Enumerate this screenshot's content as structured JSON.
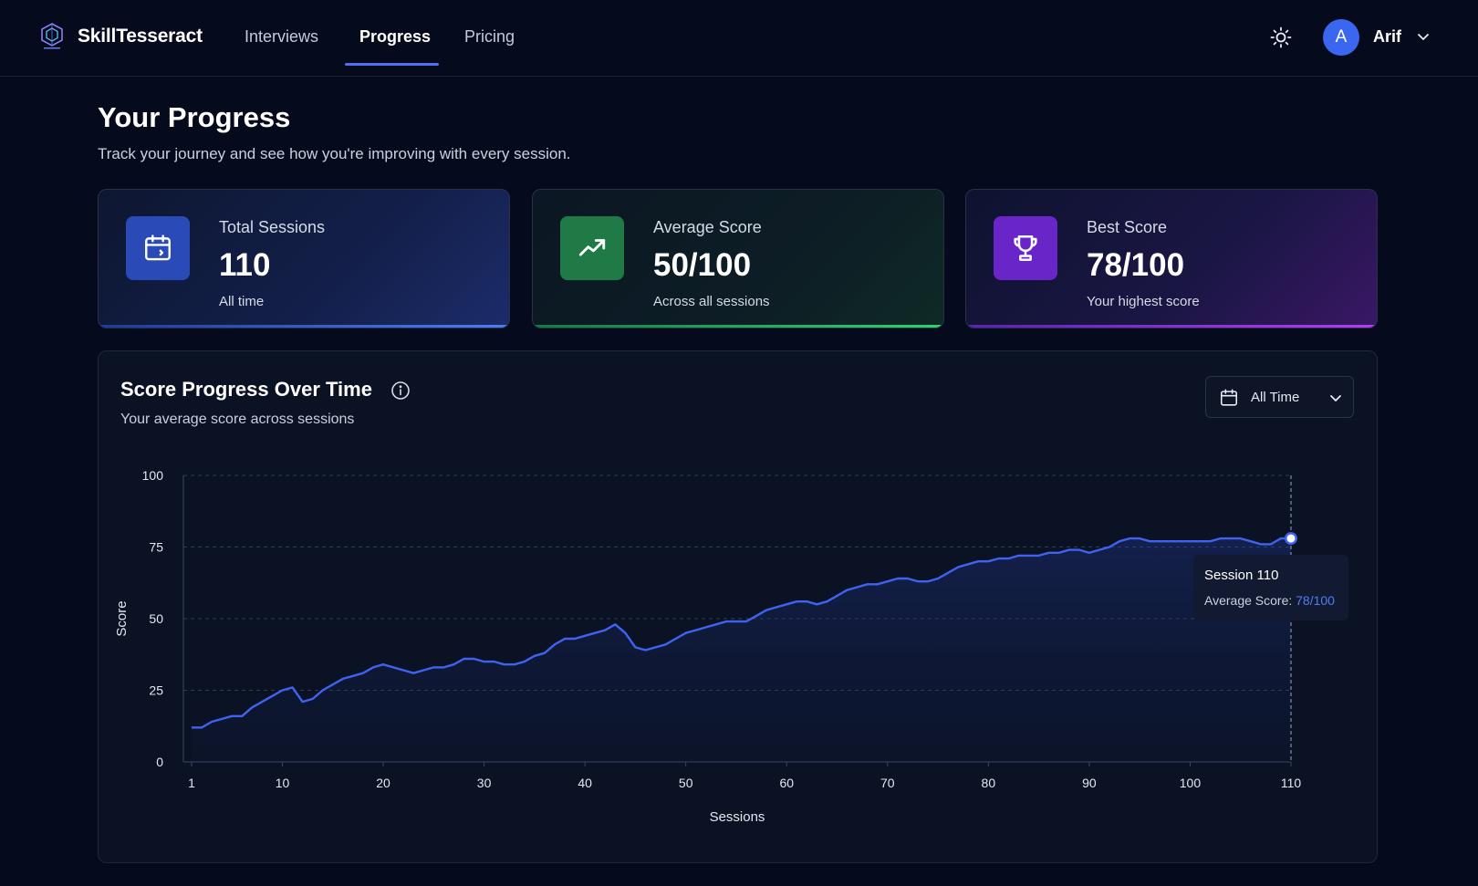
{
  "app": {
    "brand": "SkillTesseract"
  },
  "nav": {
    "items": [
      {
        "label": "Interviews",
        "active": false
      },
      {
        "label": "Progress",
        "active": true
      },
      {
        "label": "Pricing",
        "active": false
      }
    ]
  },
  "user": {
    "initial": "A",
    "name": "Arif"
  },
  "page": {
    "title": "Your Progress",
    "subtitle": "Track your journey and see how you're improving with every session."
  },
  "stats": [
    {
      "label": "Total Sessions",
      "value": "110",
      "caption": "All time",
      "icon": "calendar-icon",
      "color": "#2a4ab8"
    },
    {
      "label": "Average Score",
      "value": "50/100",
      "caption": "Across all sessions",
      "icon": "trending-up-icon",
      "color": "#1f7a46"
    },
    {
      "label": "Best Score",
      "value": "78/100",
      "caption": "Your highest score",
      "icon": "trophy-icon",
      "color": "#6a25c9"
    }
  ],
  "chart_panel": {
    "title": "Score Progress Over Time",
    "subtitle": "Your average score across sessions",
    "range_label": "All Time"
  },
  "tooltip": {
    "title": "Session 110",
    "label": "Average Score: ",
    "value": "78/100"
  },
  "chart_data": {
    "type": "area",
    "xlabel": "Sessions",
    "ylabel": "Score",
    "xlim": [
      1,
      110
    ],
    "ylim": [
      0,
      100
    ],
    "x_ticks": [
      1,
      10,
      20,
      30,
      40,
      50,
      60,
      70,
      80,
      90,
      100,
      110
    ],
    "y_ticks": [
      0,
      25,
      50,
      75,
      100
    ],
    "grid": true,
    "line_color": "#3f63f0",
    "series": [
      {
        "values": [
          12,
          12,
          14,
          15,
          16,
          16,
          19,
          21,
          23,
          25,
          26,
          21,
          22,
          25,
          27,
          29,
          30,
          31,
          33,
          34,
          33,
          32,
          31,
          32,
          33,
          33,
          34,
          36,
          36,
          35,
          35,
          34,
          34,
          35,
          37,
          38,
          41,
          43,
          43,
          44,
          45,
          46,
          48,
          45,
          40,
          39,
          40,
          41,
          43,
          45,
          46,
          47,
          48,
          49,
          49,
          49,
          51,
          53,
          54,
          55,
          56,
          56,
          55,
          56,
          58,
          60,
          61,
          62,
          62,
          63,
          64,
          64,
          63,
          63,
          64,
          66,
          68,
          69,
          70,
          70,
          71,
          71,
          72,
          72,
          72,
          73,
          73,
          74,
          74,
          73,
          74,
          75,
          77,
          78,
          78,
          77,
          77,
          77,
          77,
          77,
          77,
          77,
          78,
          78,
          78,
          77,
          76,
          76,
          78,
          78
        ]
      }
    ]
  }
}
